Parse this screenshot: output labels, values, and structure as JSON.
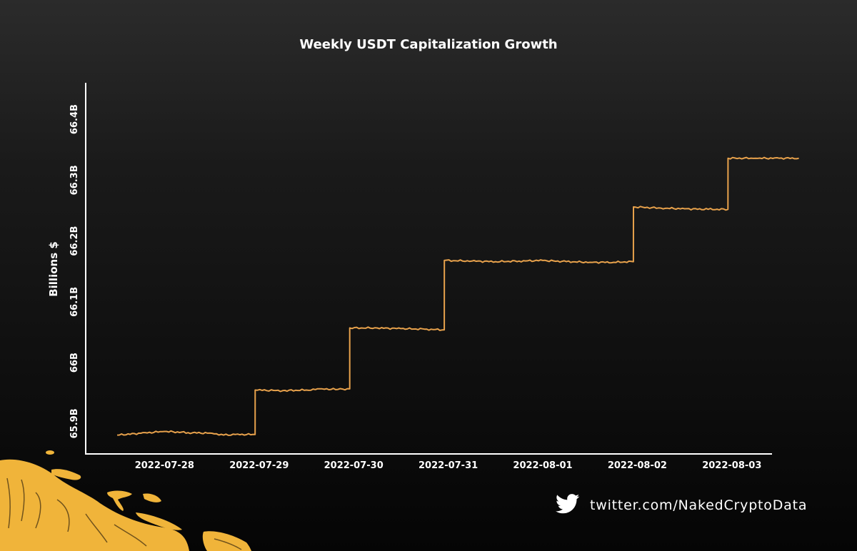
{
  "chart_data": {
    "type": "line",
    "title": "Weekly USDT Capitalization Growth",
    "ylabel": "Billions $",
    "xlabel": "",
    "x_ticks": [
      "2022-07-28",
      "2022-07-29",
      "2022-07-30",
      "2022-07-31",
      "2022-08-01",
      "2022-08-02",
      "2022-08-03"
    ],
    "y_ticks": [
      "65.9B",
      "66B",
      "66.1B",
      "66.2B",
      "66.3B",
      "66.4B"
    ],
    "y_tick_values": [
      65.9,
      66.0,
      66.1,
      66.2,
      66.3,
      66.4
    ],
    "xlim": [
      "2022-07-27T04:00",
      "2022-08-03T10:00"
    ],
    "ylim": [
      65.85,
      66.46
    ],
    "series": [
      {
        "color": "#e8a24c",
        "points": [
          [
            "2022-07-27T12:00",
            65.881
          ],
          [
            "2022-07-27T18:00",
            65.884
          ],
          [
            "2022-07-28T00:00",
            65.887
          ],
          [
            "2022-07-28T06:00",
            65.885
          ],
          [
            "2022-07-28T12:00",
            65.884
          ],
          [
            "2022-07-28T15:00",
            65.881
          ],
          [
            "2022-07-28T18:00",
            65.882
          ],
          [
            "2022-07-28T23:00",
            65.882
          ],
          [
            "2022-07-28T23:01",
            65.955
          ],
          [
            "2022-07-29T06:00",
            65.954
          ],
          [
            "2022-07-29T12:00",
            65.955
          ],
          [
            "2022-07-29T16:00",
            65.957
          ],
          [
            "2022-07-29T20:00",
            65.956
          ],
          [
            "2022-07-29T23:00",
            65.957
          ],
          [
            "2022-07-29T23:01",
            66.057
          ],
          [
            "2022-07-30T06:00",
            66.057
          ],
          [
            "2022-07-30T12:00",
            66.056
          ],
          [
            "2022-07-30T18:00",
            66.055
          ],
          [
            "2022-07-30T23:00",
            66.054
          ],
          [
            "2022-07-30T23:01",
            66.168
          ],
          [
            "2022-07-31T06:00",
            66.167
          ],
          [
            "2022-07-31T12:00",
            66.166
          ],
          [
            "2022-07-31T18:00",
            66.167
          ],
          [
            "2022-08-01T00:00",
            66.168
          ],
          [
            "2022-08-01T06:00",
            66.166
          ],
          [
            "2022-08-01T12:00",
            66.165
          ],
          [
            "2022-08-01T18:00",
            66.165
          ],
          [
            "2022-08-01T23:00",
            66.166
          ],
          [
            "2022-08-01T23:01",
            66.256
          ],
          [
            "2022-08-02T06:00",
            66.254
          ],
          [
            "2022-08-02T12:00",
            66.253
          ],
          [
            "2022-08-02T18:00",
            66.252
          ],
          [
            "2022-08-02T23:00",
            66.252
          ],
          [
            "2022-08-02T23:01",
            66.336
          ],
          [
            "2022-08-03T06:00",
            66.336
          ],
          [
            "2022-08-03T12:00",
            66.336
          ],
          [
            "2022-08-03T17:00",
            66.336
          ]
        ]
      }
    ],
    "grid": false,
    "legend": "none"
  },
  "footer": {
    "twitter_icon": "twitter-bird-icon",
    "handle": "twitter.com/NakedCryptoData"
  },
  "colors": {
    "line": "#e8a24c",
    "axis": "#ffffff",
    "text": "#ffffff",
    "gold": "#f0b43a"
  }
}
